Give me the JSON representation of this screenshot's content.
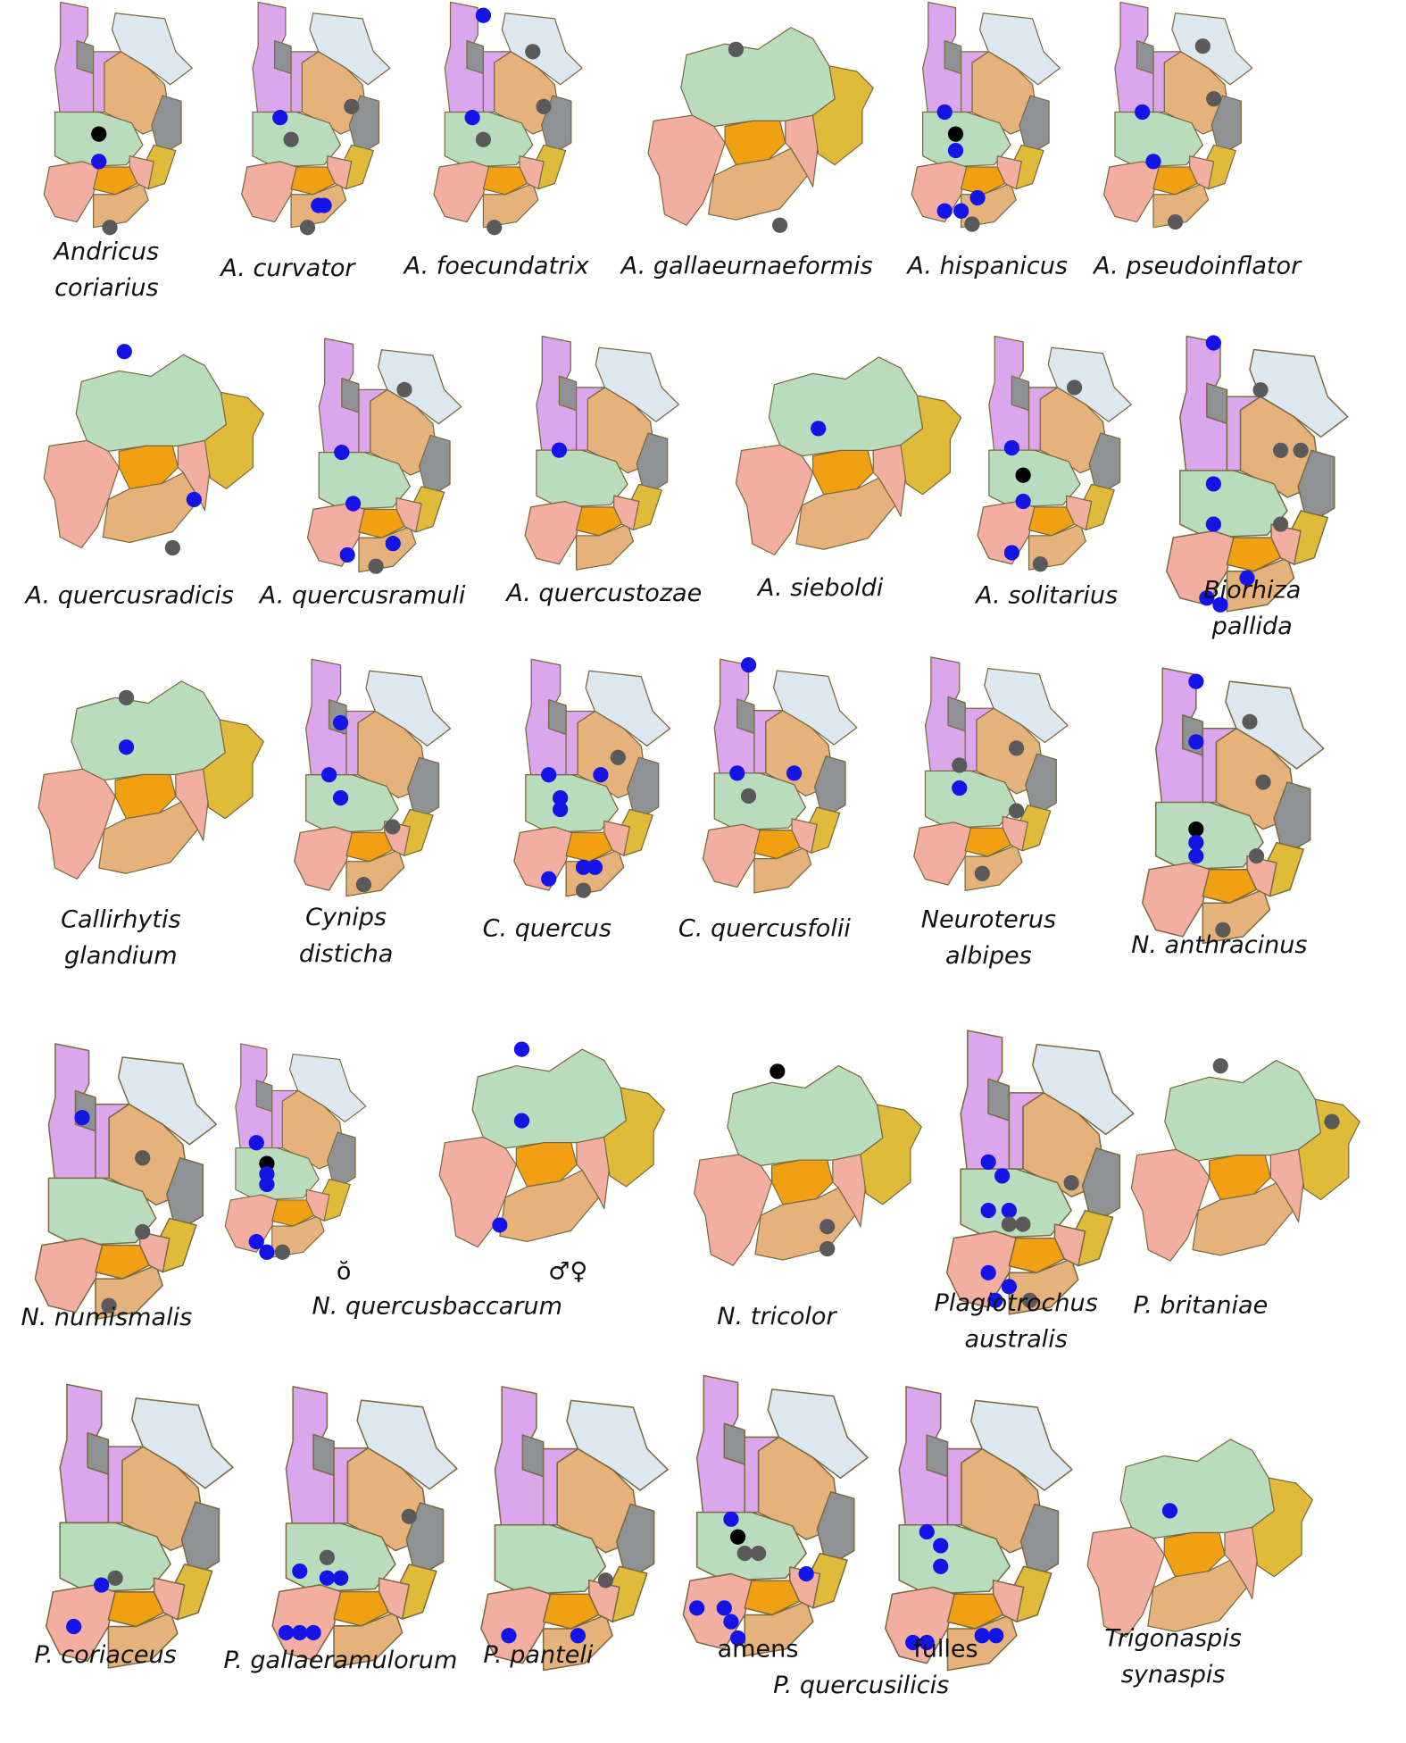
{
  "captions": [
    [
      "Andricus",
      "coriarius"
    ],
    [
      "A. curvator"
    ],
    [
      "A. foecundatrix"
    ],
    [
      "A. gallaeurnaeformis"
    ],
    [
      "A. hispanicus"
    ],
    [
      "A. pseudoinflator"
    ],
    [
      "A. quercusradicis"
    ],
    [
      "A. quercusramuli"
    ],
    [
      "A. quercustozae"
    ],
    [
      "A. sieboldi"
    ],
    [
      "A. solitarius"
    ],
    [
      "Biorhiza",
      "pallida"
    ],
    [
      "Callirhytis",
      "glandium"
    ],
    [
      "Cynips",
      "disticha"
    ],
    [
      "C. quercus"
    ],
    [
      "C. quercusfolii"
    ],
    [
      "Neuroterus",
      "albipes"
    ],
    [
      "N. anthracinus"
    ],
    [
      "N. numismalis"
    ],
    [
      "ŏ"
    ],
    [
      "♂♀"
    ],
    [
      "N. quercusbaccarum"
    ],
    [
      "N. tricolor"
    ],
    [
      "Plagiotrochus",
      "australis"
    ],
    [
      "P. britaniae"
    ],
    [
      "P. coriaceus"
    ],
    [
      "P. gallaeramulorum"
    ],
    [
      "P. panteli"
    ],
    [
      "amens"
    ],
    [
      "fulles"
    ],
    [
      "P. quercusilicis"
    ],
    [
      "Trigonaspis",
      "synaspis"
    ]
  ]
}
